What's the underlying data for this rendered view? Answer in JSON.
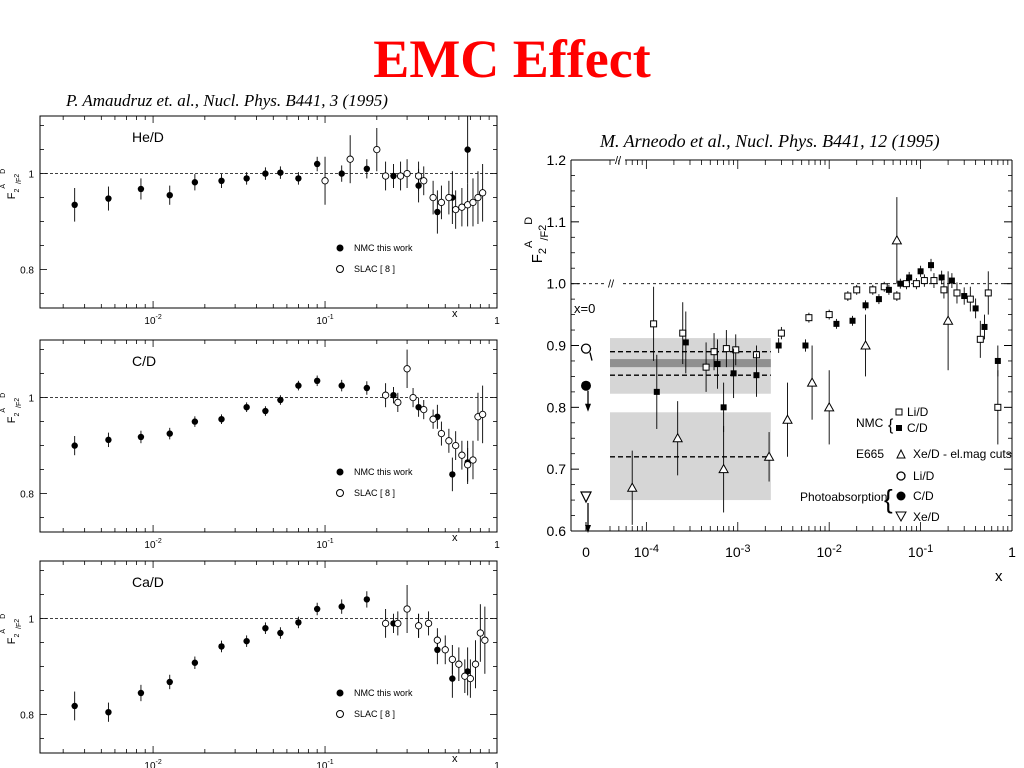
{
  "slide": {
    "title": "EMC Effect",
    "left_reference": "P. Amaudruz et. al., Nucl. Phys. B441, 3 (1995)",
    "right_reference": "M. Arneodo et al., Nucl. Phys. B441, 12 (1995)"
  },
  "chart_data": [
    {
      "type": "scatter",
      "title": "He/D",
      "ylabel": "F2A/F2D",
      "xlabel": "x",
      "x_scale": "log",
      "xlim": [
        0.0022,
        1.0
      ],
      "ylim": [
        0.72,
        1.12
      ],
      "x_tick_labels": [
        "10-2",
        "10-1",
        "1"
      ],
      "y_tick_labels": [
        "0.8",
        "1"
      ],
      "reference_line": 1.0,
      "legend": [
        "NMC this work",
        "SLAC [ 8 ]"
      ],
      "legend_position": "bottom-right",
      "series": [
        {
          "name": "NMC this work",
          "marker": "filled-circle",
          "points": [
            [
              0.0035,
              0.935,
              0.035
            ],
            [
              0.0055,
              0.948,
              0.025
            ],
            [
              0.0085,
              0.968,
              0.022
            ],
            [
              0.0125,
              0.955,
              0.02
            ],
            [
              0.0175,
              0.982,
              0.017
            ],
            [
              0.025,
              0.985,
              0.015
            ],
            [
              0.035,
              0.99,
              0.013
            ],
            [
              0.045,
              1.0,
              0.013
            ],
            [
              0.055,
              1.002,
              0.013
            ],
            [
              0.07,
              0.99,
              0.013
            ],
            [
              0.09,
              1.02,
              0.015
            ],
            [
              0.125,
              1.0,
              0.017
            ],
            [
              0.175,
              1.01,
              0.02
            ],
            [
              0.25,
              0.995,
              0.025
            ],
            [
              0.35,
              0.975,
              0.035
            ],
            [
              0.45,
              0.92,
              0.045
            ],
            [
              0.55,
              0.95,
              0.055
            ],
            [
              0.675,
              1.05,
              0.07
            ]
          ]
        },
        {
          "name": "SLAC [ 8 ]",
          "marker": "open-circle",
          "points": [
            [
              0.1,
              0.985,
              0.05
            ],
            [
              0.14,
              1.03,
              0.05
            ],
            [
              0.2,
              1.05,
              0.045
            ],
            [
              0.225,
              0.995,
              0.03
            ],
            [
              0.275,
              0.995,
              0.03
            ],
            [
              0.3,
              1.0,
              0.03
            ],
            [
              0.35,
              0.995,
              0.03
            ],
            [
              0.375,
              0.985,
              0.03
            ],
            [
              0.425,
              0.95,
              0.035
            ],
            [
              0.475,
              0.94,
              0.035
            ],
            [
              0.525,
              0.95,
              0.035
            ],
            [
              0.575,
              0.925,
              0.04
            ],
            [
              0.625,
              0.93,
              0.04
            ],
            [
              0.675,
              0.935,
              0.045
            ],
            [
              0.725,
              0.94,
              0.05
            ],
            [
              0.775,
              0.95,
              0.055
            ],
            [
              0.825,
              0.96,
              0.06
            ]
          ]
        }
      ]
    },
    {
      "type": "scatter",
      "title": "C/D",
      "ylabel": "F2A/F2D",
      "xlabel": "x",
      "x_scale": "log",
      "xlim": [
        0.0022,
        1.0
      ],
      "ylim": [
        0.72,
        1.12
      ],
      "x_tick_labels": [
        "10-2",
        "10-1",
        "1"
      ],
      "y_tick_labels": [
        "0.8",
        "1"
      ],
      "reference_line": 1.0,
      "legend": [
        "NMC this work",
        "SLAC [ 8 ]"
      ],
      "legend_position": "bottom-right",
      "series": [
        {
          "name": "NMC this work",
          "marker": "filled-circle",
          "points": [
            [
              0.0035,
              0.9,
              0.02
            ],
            [
              0.0055,
              0.912,
              0.015
            ],
            [
              0.0085,
              0.918,
              0.013
            ],
            [
              0.0125,
              0.925,
              0.012
            ],
            [
              0.0175,
              0.95,
              0.011
            ],
            [
              0.025,
              0.955,
              0.01
            ],
            [
              0.035,
              0.98,
              0.01
            ],
            [
              0.045,
              0.972,
              0.01
            ],
            [
              0.055,
              0.995,
              0.01
            ],
            [
              0.07,
              1.025,
              0.01
            ],
            [
              0.09,
              1.035,
              0.011
            ],
            [
              0.125,
              1.025,
              0.012
            ],
            [
              0.175,
              1.02,
              0.014
            ],
            [
              0.25,
              1.005,
              0.017
            ],
            [
              0.35,
              0.98,
              0.02
            ],
            [
              0.45,
              0.96,
              0.025
            ],
            [
              0.55,
              0.84,
              0.035
            ],
            [
              0.675,
              0.865,
              0.045
            ]
          ]
        },
        {
          "name": "SLAC [ 8 ]",
          "marker": "open-circle",
          "points": [
            [
              0.225,
              1.005,
              0.025
            ],
            [
              0.265,
              0.99,
              0.02
            ],
            [
              0.3,
              1.06,
              0.04
            ],
            [
              0.325,
              1.0,
              0.02
            ],
            [
              0.375,
              0.975,
              0.02
            ],
            [
              0.425,
              0.955,
              0.02
            ],
            [
              0.475,
              0.925,
              0.025
            ],
            [
              0.525,
              0.91,
              0.025
            ],
            [
              0.575,
              0.9,
              0.03
            ],
            [
              0.625,
              0.88,
              0.03
            ],
            [
              0.675,
              0.86,
              0.035
            ],
            [
              0.725,
              0.87,
              0.04
            ],
            [
              0.775,
              0.96,
              0.05
            ],
            [
              0.825,
              0.965,
              0.06
            ]
          ]
        }
      ]
    },
    {
      "type": "scatter",
      "title": "Ca/D",
      "ylabel": "F2A/F2D",
      "xlabel": "x",
      "x_scale": "log",
      "xlim": [
        0.0022,
        1.0
      ],
      "ylim": [
        0.72,
        1.12
      ],
      "x_tick_labels": [
        "10-2",
        "10-1",
        "1"
      ],
      "y_tick_labels": [
        "0.8",
        "1"
      ],
      "reference_line": 1.0,
      "legend": [
        "NMC this work",
        "SLAC [ 8 ]"
      ],
      "legend_position": "bottom-right",
      "series": [
        {
          "name": "NMC this work",
          "marker": "filled-circle",
          "points": [
            [
              0.0035,
              0.818,
              0.03
            ],
            [
              0.0055,
              0.805,
              0.02
            ],
            [
              0.0085,
              0.845,
              0.017
            ],
            [
              0.0125,
              0.868,
              0.015
            ],
            [
              0.0175,
              0.908,
              0.013
            ],
            [
              0.025,
              0.942,
              0.012
            ],
            [
              0.035,
              0.953,
              0.012
            ],
            [
              0.045,
              0.98,
              0.012
            ],
            [
              0.055,
              0.97,
              0.012
            ],
            [
              0.07,
              0.992,
              0.012
            ],
            [
              0.09,
              1.02,
              0.013
            ],
            [
              0.125,
              1.025,
              0.015
            ],
            [
              0.175,
              1.04,
              0.017
            ],
            [
              0.25,
              0.99,
              0.02
            ],
            [
              0.35,
              0.985,
              0.025
            ],
            [
              0.45,
              0.935,
              0.03
            ],
            [
              0.55,
              0.875,
              0.04
            ],
            [
              0.675,
              0.89,
              0.05
            ]
          ]
        },
        {
          "name": "SLAC [ 8 ]",
          "marker": "open-circle",
          "points": [
            [
              0.225,
              0.99,
              0.03
            ],
            [
              0.265,
              0.99,
              0.025
            ],
            [
              0.3,
              1.02,
              0.05
            ],
            [
              0.35,
              0.985,
              0.025
            ],
            [
              0.4,
              0.99,
              0.025
            ],
            [
              0.45,
              0.955,
              0.025
            ],
            [
              0.5,
              0.935,
              0.03
            ],
            [
              0.55,
              0.915,
              0.03
            ],
            [
              0.6,
              0.905,
              0.035
            ],
            [
              0.65,
              0.88,
              0.035
            ],
            [
              0.7,
              0.875,
              0.04
            ],
            [
              0.75,
              0.905,
              0.05
            ],
            [
              0.8,
              0.97,
              0.06
            ],
            [
              0.85,
              0.955,
              0.07
            ]
          ]
        }
      ]
    },
    {
      "type": "scatter",
      "title": "",
      "ylabel": "F2A/F2D",
      "xlabel": "x",
      "x_scale": "log with broken axis at 0",
      "xlim": [
        4e-05,
        1.0
      ],
      "ylim": [
        0.6,
        1.2
      ],
      "x_tick_labels": [
        "0",
        "10-4",
        "10-3",
        "10-2",
        "10-1",
        "1"
      ],
      "y_tick_labels": [
        "0.6",
        "0.7",
        "0.8",
        "0.9",
        "1.0",
        "1.1",
        "1.2"
      ],
      "reference_line": 1.0,
      "x0_label": "x=0",
      "legend_position": "bottom-right",
      "legend": {
        "nmc_label": "NMC",
        "nmc_li": "Li/D",
        "nmc_c": "C/D",
        "e665_label": "E665",
        "e665_xe": "Xe/D - el.mag cuts",
        "photo_label": "Photoabsorption",
        "photo_li": "Li/D",
        "photo_c": "C/D",
        "photo_xe": "Xe/D"
      },
      "bands": [
        {
          "name": "Li/D",
          "x_range": [
            4e-05,
            0.0023
          ],
          "y_range": [
            0.822,
            0.912
          ],
          "dashed": 0.89
        },
        {
          "name": "C/D",
          "x_range": [
            4e-05,
            0.0023
          ],
          "y_range": [
            0.865,
            0.878
          ],
          "dashed": 0.852
        },
        {
          "name": "Xe/D",
          "x_range": [
            4e-05,
            0.0023
          ],
          "y_range": [
            0.65,
            0.792
          ],
          "dashed": 0.72
        }
      ],
      "photoabsorption_x0": [
        {
          "name": "Li/D",
          "marker": "open-circle",
          "y": 0.895
        },
        {
          "name": "C/D",
          "marker": "filled-circle",
          "y": 0.835
        },
        {
          "name": "Xe/D",
          "marker": "open-triangle-down",
          "y": 0.655
        }
      ],
      "series": [
        {
          "name": "Li/D",
          "marker": "open-square",
          "points": [
            [
              0.00012,
              0.935,
              0.06
            ],
            [
              0.00025,
              0.92,
              0.05
            ],
            [
              0.00045,
              0.865,
              0.04
            ],
            [
              0.00055,
              0.89,
              0.03
            ],
            [
              0.00075,
              0.895,
              0.03
            ],
            [
              0.00095,
              0.893,
              0.025
            ],
            [
              0.0016,
              0.885,
              0.015
            ],
            [
              0.003,
              0.92,
              0.01
            ],
            [
              0.006,
              0.945,
              0.008
            ],
            [
              0.01,
              0.95,
              0.008
            ],
            [
              0.016,
              0.98,
              0.008
            ],
            [
              0.02,
              0.99,
              0.008
            ],
            [
              0.03,
              0.99,
              0.008
            ],
            [
              0.04,
              0.995,
              0.008
            ],
            [
              0.055,
              0.98,
              0.008
            ],
            [
              0.07,
              1.0,
              0.009
            ],
            [
              0.09,
              1.0,
              0.009
            ],
            [
              0.11,
              1.005,
              0.01
            ],
            [
              0.14,
              1.005,
              0.012
            ],
            [
              0.18,
              0.99,
              0.014
            ],
            [
              0.25,
              0.985,
              0.017
            ],
            [
              0.35,
              0.975,
              0.02
            ],
            [
              0.45,
              0.91,
              0.03
            ],
            [
              0.55,
              0.985,
              0.035
            ],
            [
              0.7,
              0.8,
              0.06
            ]
          ]
        },
        {
          "name": "C/D",
          "marker": "filled-square",
          "points": [
            [
              0.00013,
              0.825,
              0.06
            ],
            [
              0.00027,
              0.905,
              0.05
            ],
            [
              0.0006,
              0.87,
              0.04
            ],
            [
              0.0007,
              0.8,
              0.04
            ],
            [
              0.0009,
              0.855,
              0.04
            ],
            [
              0.0016,
              0.852,
              0.035
            ],
            [
              0.0028,
              0.9,
              0.012
            ],
            [
              0.0055,
              0.9,
              0.01
            ],
            [
              0.012,
              0.935,
              0.008
            ],
            [
              0.018,
              0.94,
              0.008
            ],
            [
              0.025,
              0.965,
              0.008
            ],
            [
              0.035,
              0.975,
              0.008
            ],
            [
              0.045,
              0.99,
              0.008
            ],
            [
              0.06,
              1.0,
              0.008
            ],
            [
              0.075,
              1.01,
              0.009
            ],
            [
              0.1,
              1.02,
              0.009
            ],
            [
              0.13,
              1.03,
              0.01
            ],
            [
              0.17,
              1.01,
              0.011
            ],
            [
              0.22,
              1.005,
              0.012
            ],
            [
              0.3,
              0.98,
              0.014
            ],
            [
              0.4,
              0.96,
              0.016
            ],
            [
              0.5,
              0.93,
              0.02
            ],
            [
              0.7,
              0.875,
              0.025
            ]
          ]
        },
        {
          "name": "Xe/D - el.mag cuts",
          "marker": "open-triangle",
          "points": [
            [
              7e-05,
              0.67,
              0.06
            ],
            [
              0.00022,
              0.75,
              0.06
            ],
            [
              0.0007,
              0.7,
              0.07
            ],
            [
              0.0022,
              0.72,
              0.04
            ],
            [
              0.0035,
              0.78,
              0.06
            ],
            [
              0.0065,
              0.84,
              0.06
            ],
            [
              0.01,
              0.8,
              0.06
            ],
            [
              0.025,
              0.9,
              0.05
            ],
            [
              0.055,
              1.07,
              0.07
            ],
            [
              0.2,
              0.94,
              0.08
            ]
          ]
        }
      ]
    }
  ]
}
